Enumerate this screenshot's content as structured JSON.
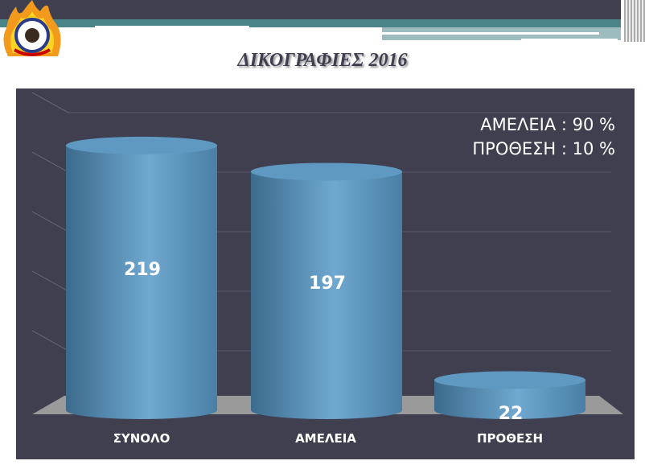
{
  "slide": {
    "title": "ΔΙΚΟΓΡΑΦΙΕΣ  2016"
  },
  "annotation": {
    "line1": "ΑΜΕΛΕΙΑ : 90 %",
    "line2": "ΠΡΟΘΕΣΗ : 10  %"
  },
  "colors": {
    "background": "#3f3f50",
    "bar": "#5b93bb",
    "floor": "#9a9a9a"
  },
  "chart_data": {
    "type": "bar",
    "style": "3d-cylinder",
    "title": "ΔΙΚΟΓΡΑΦΙΕΣ  2016",
    "categories": [
      "ΣΥΝΟΛΟ",
      "ΑΜΕΛΕΙΑ",
      "ΠΡΟΘΕΣΗ"
    ],
    "values": [
      219,
      197,
      22
    ],
    "data_labels": [
      "219",
      "197",
      "22"
    ],
    "ylim": [
      0,
      250
    ],
    "grid": true,
    "xlabel": "",
    "ylabel": ""
  }
}
